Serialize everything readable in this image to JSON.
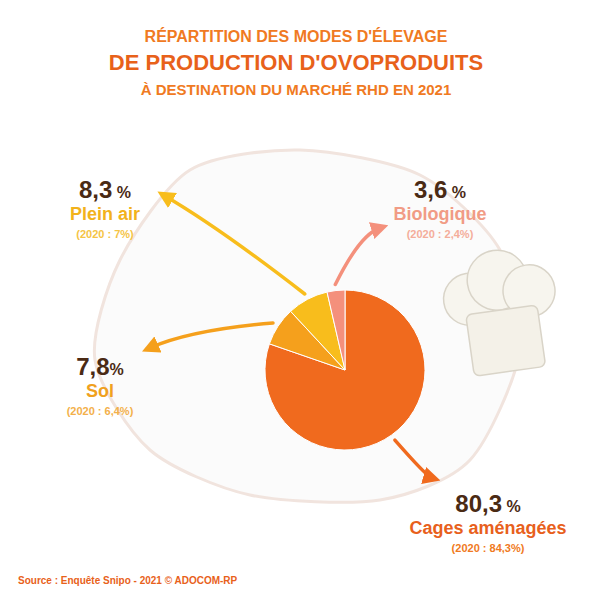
{
  "chart_data": {
    "type": "pie",
    "title": [
      "RÉPARTITION DES MODES D'ÉLEVAGE",
      "DE PRODUCTION D'OVOPRODUITS",
      "À DESTINATION DU MARCHÉ RHD EN 2021"
    ],
    "categories": [
      "Cages aménagées",
      "Sol",
      "Plein air",
      "Biologique"
    ],
    "values": [
      80.3,
      7.8,
      8.3,
      3.6
    ],
    "value_labels": [
      "80,3 %",
      "7,8%",
      "8,3 %",
      "3,6 %"
    ],
    "annotations": [
      "(2020 : 84,3%)",
      "(2020 : 6,4%)",
      "(2020 : 7%)",
      "(2020 : 2,4%)"
    ],
    "colors": [
      "#f06a1e",
      "#f5a01c",
      "#f8bd1c",
      "#f4907c"
    ],
    "data_labels": true,
    "source": "Source : Enquête Snipo - 2021 © ADOCOM-RP"
  }
}
